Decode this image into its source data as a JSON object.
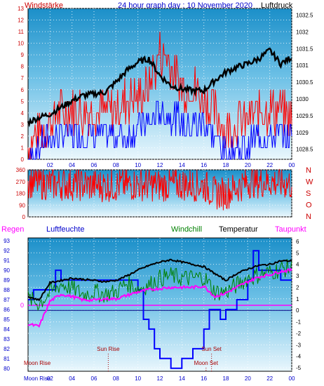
{
  "title": "24 hour graph day : 10 November 2020",
  "colors": {
    "wind": "#ff0000",
    "gust": "#0000ff",
    "pressure": "#000000",
    "humidity": "#0000ff",
    "temperature": "#000000",
    "windchill": "#008000",
    "dewpoint": "#ff00ff",
    "rain": "#ff00ff",
    "direction": "#ff0000",
    "sun": "#aa0000",
    "moon": "#aa0000",
    "axis_left": "#cc0000",
    "axis_right": "#000000",
    "axis_time": "#0000cc"
  },
  "chart_data": [
    {
      "type": "line",
      "labels": {
        "left": "Windstärke",
        "right": "Luftdruck"
      },
      "x_ticks": [
        "02",
        "04",
        "06",
        "08",
        "10",
        "12",
        "14",
        "16",
        "18",
        "20",
        "22",
        "00"
      ],
      "y_left_ticks": [
        0,
        1,
        2,
        3,
        4,
        5,
        6,
        7,
        8,
        9,
        10,
        11,
        12,
        13
      ],
      "y_right_ticks": [
        1028.5,
        1029,
        1029.5,
        1030,
        1030.5,
        1031,
        1031.5,
        1032,
        1032.5
      ],
      "y_left_range": [
        0,
        13
      ],
      "y_right_range": [
        1028.2,
        1032.7
      ],
      "series": [
        {
          "key": "pressure",
          "hours": [
            0,
            1,
            2,
            3,
            4,
            5,
            6,
            7,
            8,
            9,
            10,
            11,
            12,
            13,
            14,
            15,
            16,
            17,
            18,
            19,
            20,
            21,
            22,
            23,
            24
          ],
          "values": [
            1029.3,
            1029.45,
            1029.55,
            1029.75,
            1029.95,
            1030.1,
            1030.15,
            1030.2,
            1030.5,
            1030.85,
            1031.1,
            1031.2,
            1030.7,
            1030.4,
            1030.3,
            1030.25,
            1030.25,
            1030.55,
            1030.8,
            1030.95,
            1031.05,
            1031.2,
            1031.45,
            1031.05,
            1031.25
          ]
        },
        {
          "key": "wind",
          "hours": [
            0,
            1,
            2,
            3,
            4,
            5,
            6,
            7,
            8,
            9,
            10,
            11,
            12,
            13,
            14,
            15,
            16,
            17,
            18,
            19,
            20,
            21,
            22,
            23,
            24
          ],
          "values": [
            1,
            2,
            3,
            4,
            4,
            4,
            4,
            4,
            4,
            5,
            5,
            6,
            9,
            8,
            6,
            6,
            5,
            4,
            2,
            3,
            3,
            4,
            4,
            4,
            3
          ]
        },
        {
          "key": "gust",
          "hours": [
            0,
            1,
            2,
            3,
            4,
            5,
            6,
            7,
            8,
            9,
            10,
            11,
            12,
            13,
            14,
            15,
            16,
            17,
            18,
            19,
            20,
            21,
            22,
            23,
            24
          ],
          "values": [
            0,
            1,
            2,
            2,
            2,
            2,
            2,
            2,
            2,
            2,
            3,
            3,
            4,
            4,
            3,
            3,
            3,
            2,
            0,
            1,
            1,
            2,
            2,
            2,
            2
          ]
        }
      ]
    },
    {
      "type": "scatter",
      "y_ticks": [
        0,
        90,
        180,
        270,
        360
      ],
      "y_range": [
        0,
        360
      ],
      "compass": [
        "N",
        "W",
        "S",
        "O",
        "N"
      ],
      "series": [
        {
          "key": "direction",
          "hours": [
            0,
            2,
            4,
            6,
            8,
            10,
            12,
            14,
            16,
            17,
            18,
            20,
            22,
            24
          ],
          "values": [
            270,
            250,
            250,
            240,
            240,
            250,
            240,
            250,
            240,
            180,
            180,
            270,
            270,
            250
          ]
        }
      ]
    },
    {
      "type": "line",
      "labels": {
        "rain": "Regen",
        "humidity": "Luftfeuchte",
        "windchill": "Windchill",
        "temperature": "Temperatur",
        "dewpoint": "Taupunkt"
      },
      "y_left_ticks": [
        80,
        81,
        82,
        83,
        84,
        85,
        86,
        87,
        88,
        89,
        90,
        91,
        92,
        93
      ],
      "y_left_range": [
        79.7,
        93.3
      ],
      "y_right_ticks": [
        -5,
        -4,
        -3,
        -2,
        -1,
        0,
        1,
        2,
        3,
        4,
        5,
        6
      ],
      "y_right_range": [
        -5.3,
        6.3
      ],
      "rain_label": "0",
      "series": [
        {
          "key": "humidity",
          "hours": [
            0,
            0.5,
            1,
            2,
            2.5,
            3,
            5,
            8,
            9,
            10,
            10.5,
            11,
            11.5,
            12,
            13,
            14,
            15,
            16,
            16.5,
            17,
            17.5,
            18,
            19,
            20,
            20.5,
            21,
            22,
            23,
            24
          ],
          "values": [
            87,
            88,
            88,
            88,
            90,
            89,
            89,
            89,
            89,
            88,
            85,
            84,
            82,
            81,
            80,
            81,
            82,
            84,
            86,
            86,
            85,
            86,
            87,
            89,
            92,
            90,
            90,
            89,
            89
          ]
        },
        {
          "key": "temperature",
          "hours": [
            0,
            1,
            2,
            3,
            4,
            5,
            6,
            7,
            8,
            9,
            10,
            11,
            12,
            13,
            14,
            15,
            16,
            17,
            18,
            19,
            20,
            21,
            22,
            23,
            24
          ],
          "values": [
            1.2,
            0.9,
            2.4,
            2.6,
            2.8,
            2.7,
            2.6,
            2.5,
            2.6,
            3,
            3.5,
            3.9,
            4.2,
            4.4,
            4.2,
            4,
            3.8,
            3.2,
            2.6,
            3.2,
            3.6,
            3.9,
            4,
            4.3,
            4.3
          ]
        },
        {
          "key": "windchill",
          "hours": [
            0,
            1,
            2,
            3,
            4,
            5,
            6,
            7,
            8,
            9,
            10,
            11,
            12,
            13,
            14,
            15,
            16,
            17,
            18,
            19,
            20,
            21,
            22,
            23,
            24
          ],
          "values": [
            1,
            0.6,
            1.5,
            2.3,
            1.9,
            1.4,
            1.6,
            1.4,
            1.6,
            2.4,
            1.9,
            2.2,
            2.8,
            3,
            2.8,
            2.8,
            2.9,
            1.6,
            1.6,
            2.2,
            2.8,
            3.1,
            3.3,
            3.6,
            3.7
          ]
        },
        {
          "key": "dewpoint",
          "hours": [
            0,
            1,
            2,
            3,
            4,
            5,
            6,
            7,
            8,
            9,
            10,
            11,
            12,
            13,
            14,
            15,
            16,
            17,
            18,
            19,
            20,
            21,
            22,
            23,
            24
          ],
          "values": [
            -1.2,
            -1.4,
            0.8,
            1.4,
            1.2,
            0.9,
            0.9,
            1,
            1,
            1.3,
            1.6,
            1.8,
            1.9,
            2,
            2,
            2,
            2.1,
            1.2,
            1.5,
            2,
            2.5,
            2.9,
            3.1,
            3.4,
            3.5
          ]
        }
      ],
      "events": [
        {
          "label": "Moon Rise",
          "hour": -0.6
        },
        {
          "label": "Sun Rise",
          "hour": 7.3
        },
        {
          "label": "Moon Set",
          "hour": 16.2
        },
        {
          "label": "Sun Set",
          "hour": 16.7
        }
      ]
    }
  ]
}
